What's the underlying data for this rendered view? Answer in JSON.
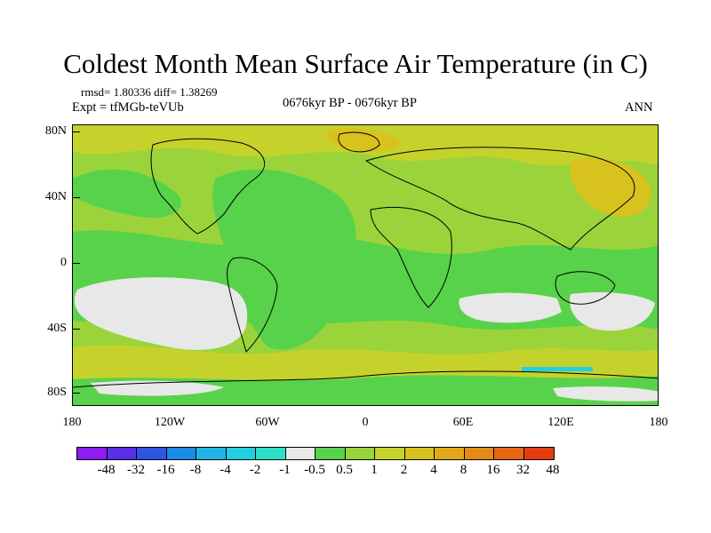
{
  "title": "Coldest Month Mean Surface Air Temperature (in C)",
  "stats_line": "rmsd= 1.80336 diff= 1.38269",
  "expt_line": "Expt = tfMGb-teVUb",
  "period_line": "0676kyr BP - 0676kyr BP",
  "season_label": "ANN",
  "lat_labels": [
    "80N",
    "40N",
    "0",
    "40S",
    "80S"
  ],
  "lon_labels": [
    "180",
    "120W",
    "60W",
    "0",
    "60E",
    "120E",
    "180"
  ],
  "colorbar": {
    "colors": [
      "#8c1cf0",
      "#5a2fe8",
      "#2f55e0",
      "#1a8be6",
      "#1fb5e8",
      "#22cfe0",
      "#2de0c8",
      "#e8e8e8",
      "#58d24a",
      "#9bd43a",
      "#c6d22c",
      "#d8c21e",
      "#e3a81a",
      "#e58a17",
      "#e66614",
      "#e33c10"
    ],
    "labels": [
      "-48",
      "-32",
      "-16",
      "-8",
      "-4",
      "-2",
      "-1",
      "-0.5",
      "0.5",
      "1",
      "2",
      "4",
      "8",
      "16",
      "32",
      "48"
    ]
  },
  "map_colors": {
    "ocean_base": "#9bd43a",
    "green": "#58d24a",
    "yellow": "#c6d22c",
    "orange": "#d8c21e",
    "gray": "#e8e8e8",
    "cyan": "#22cfe0",
    "coast": "#000000"
  }
}
